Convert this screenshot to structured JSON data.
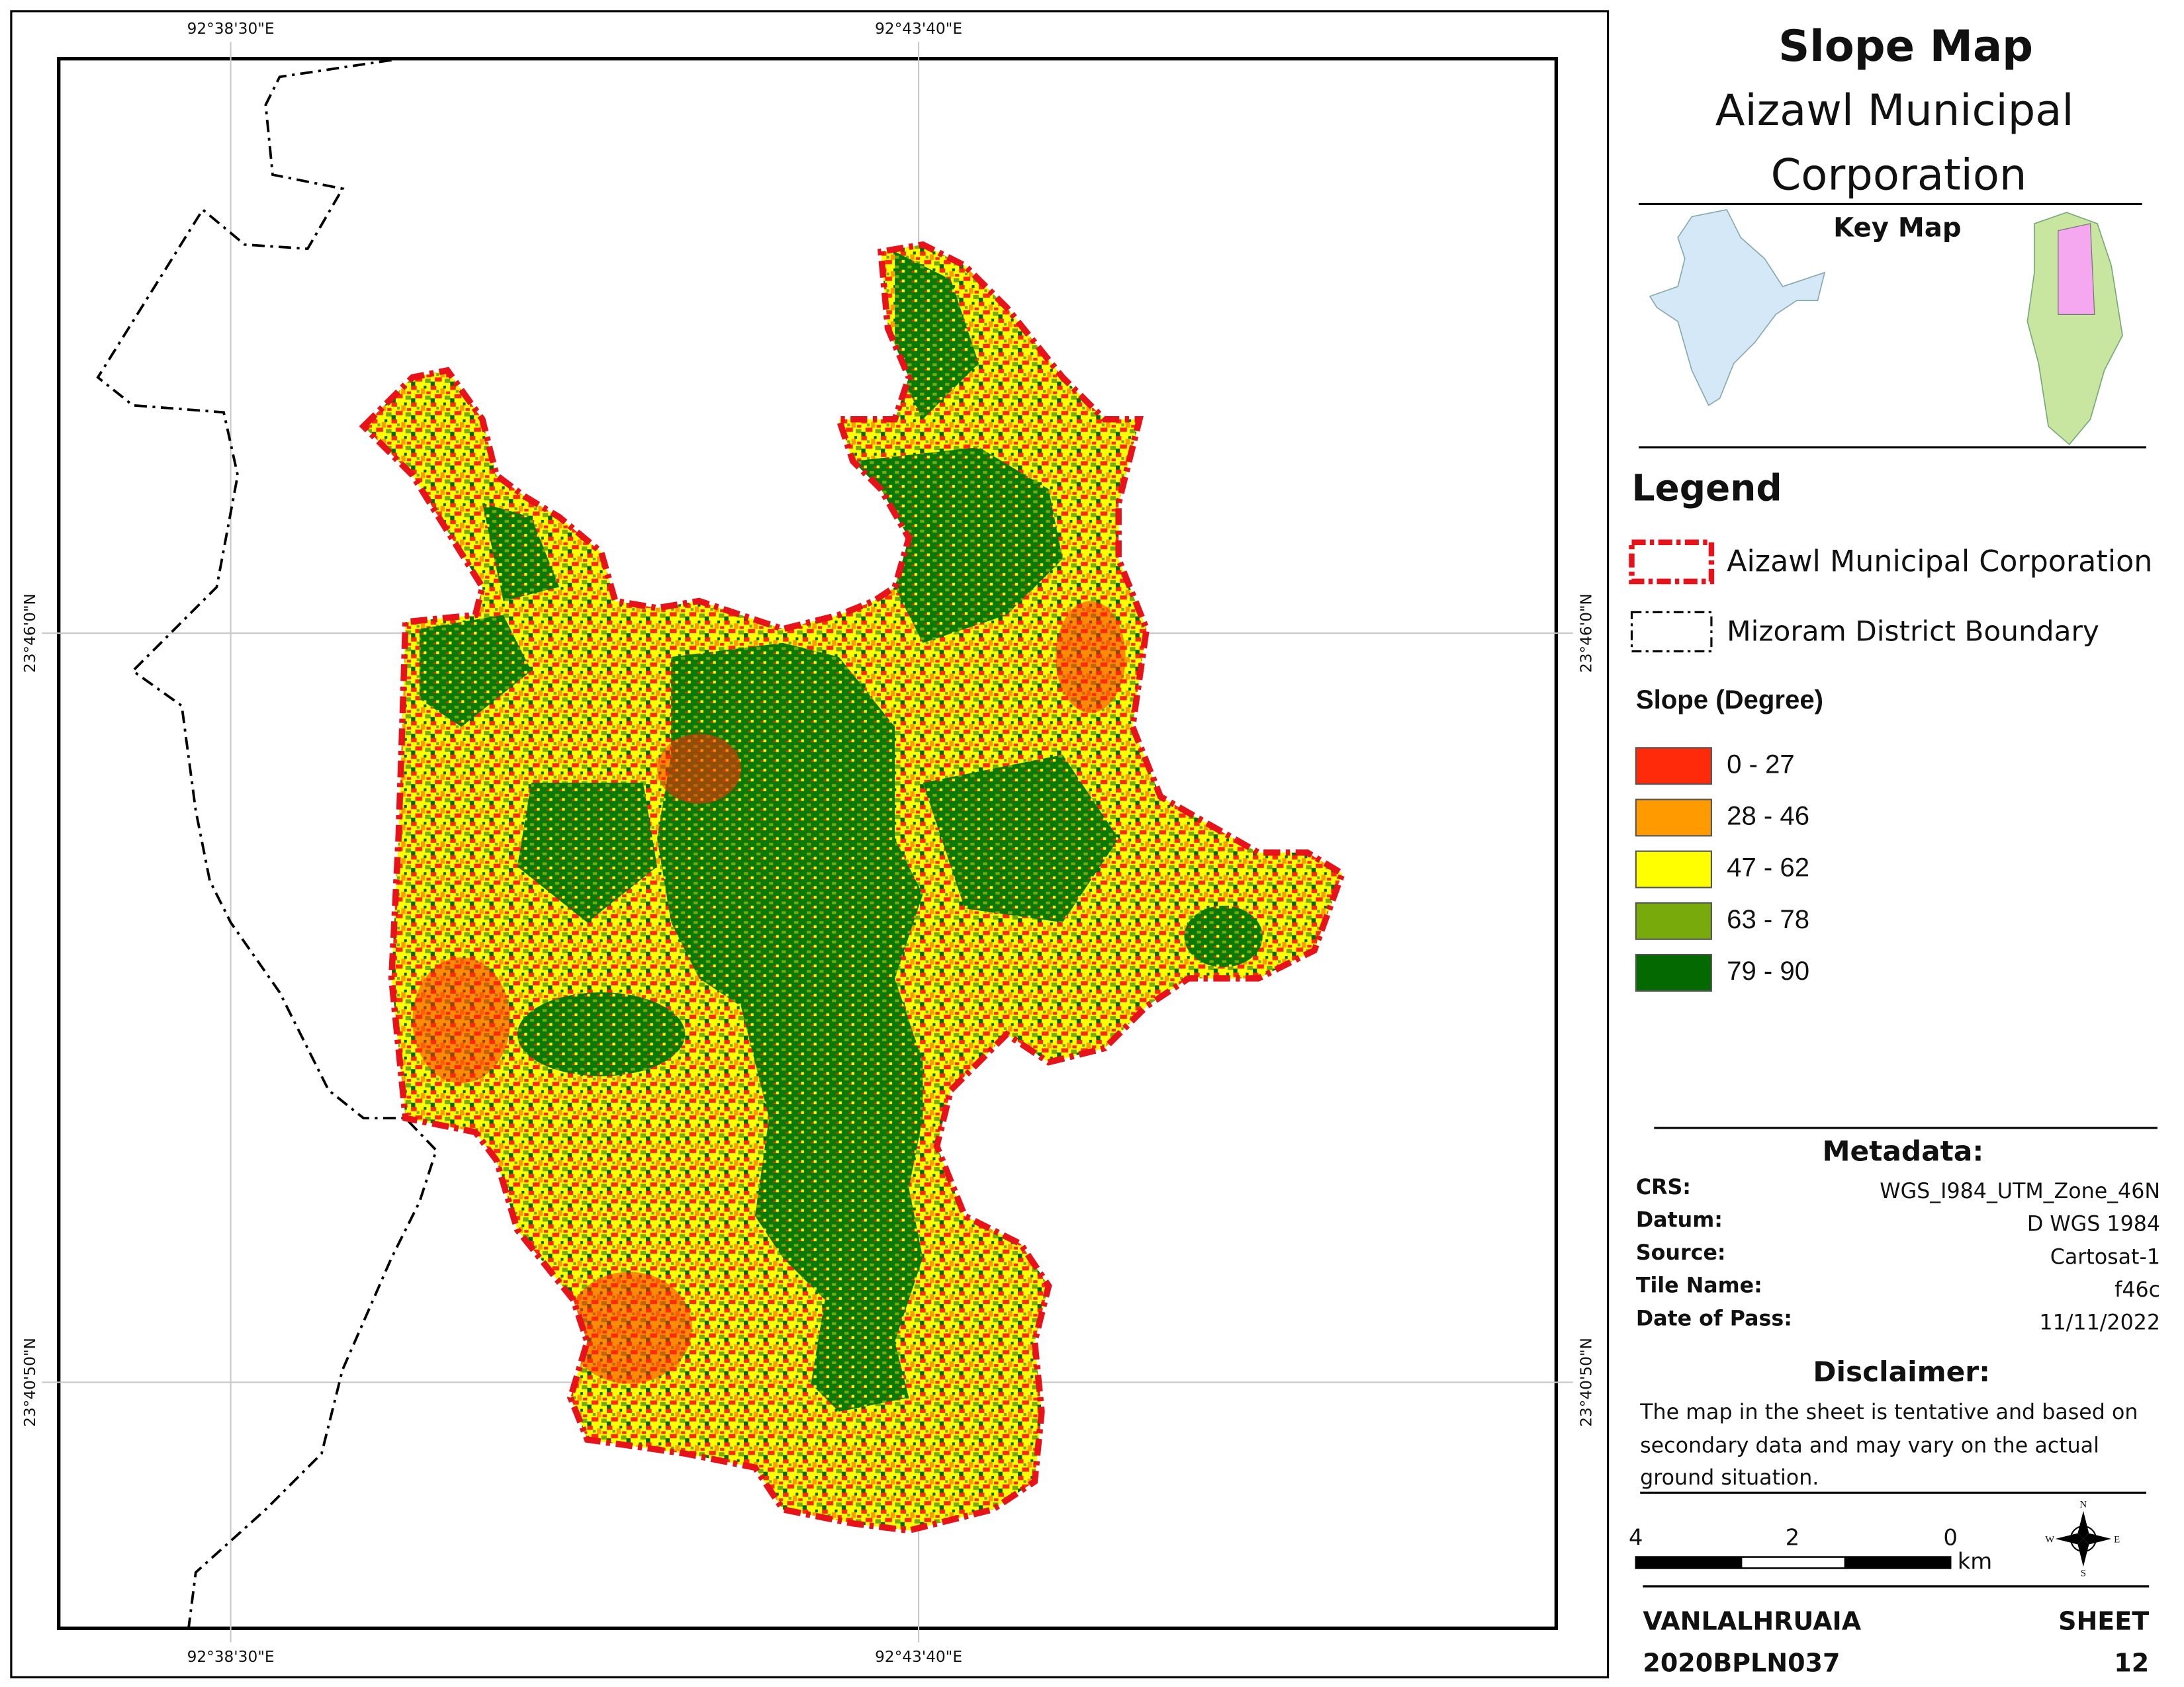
{
  "map": {
    "grid_labels": {
      "top": [
        "92°38'30\"E",
        "92°43'40\"E"
      ],
      "bottom": [
        "92°38'30\"E",
        "92°43'40\"E"
      ],
      "left": [
        "23°46'0\"N",
        "23°40'50\"N"
      ],
      "right": [
        "23°46'0\"N",
        "23°40'50\"N"
      ]
    }
  },
  "header": {
    "title": "Slope Map",
    "subtitle_lines": [
      "Aizawl Municipal",
      "Corporation"
    ],
    "key_map_title": "Key Map"
  },
  "legend": {
    "title": "Legend",
    "boundaries": [
      "Aizawl Municipal Corporation",
      "Mizoram District Boundary"
    ],
    "slope_title": "Slope (Degree)",
    "slope_classes": [
      {
        "label": "0 - 27",
        "color": "#ff2a0a"
      },
      {
        "label": "28 - 46",
        "color": "#ff9a00"
      },
      {
        "label": "47 - 62",
        "color": "#ffff00"
      },
      {
        "label": "63 - 78",
        "color": "#78aa0c"
      },
      {
        "label": "79 - 90",
        "color": "#046a00"
      }
    ]
  },
  "metadata": {
    "title": "Metadata:",
    "rows": [
      [
        "CRS:",
        "WGS_I984_UTM_Zone_46N"
      ],
      [
        "Datum:",
        "D WGS 1984"
      ],
      [
        "Source:",
        "Cartosat-1"
      ],
      [
        "Tile Name:",
        "f46c"
      ],
      [
        "Date of Pass:",
        "11/11/2022"
      ]
    ]
  },
  "disclaimer": {
    "title": "Disclaimer:",
    "lines": [
      "The map in the sheet is tentative and based on",
      "secondary data and may vary on the actual",
      "ground situation."
    ]
  },
  "scale_bar": {
    "labels": [
      "4",
      "2",
      "0"
    ],
    "unit": "km"
  },
  "north_arrow": {
    "labels": [
      "N",
      "E",
      "S",
      "W"
    ]
  },
  "footer": {
    "author": "VANLALHRUAIA",
    "roll": "2020BPLN037",
    "sheet_label": "SHEET",
    "sheet_number": "12"
  }
}
